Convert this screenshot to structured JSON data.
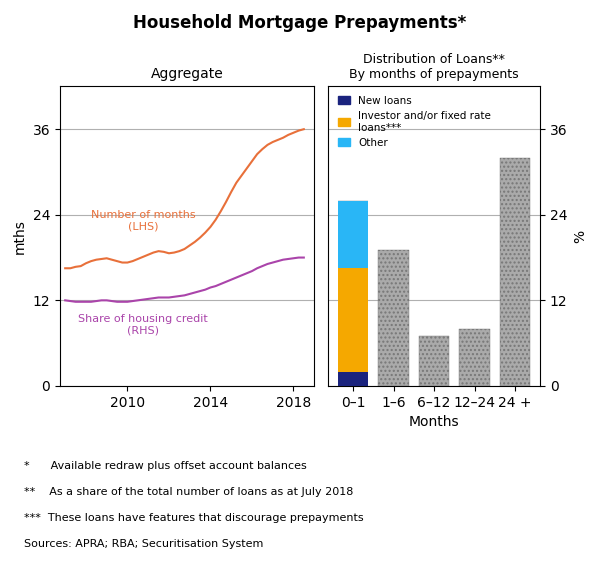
{
  "title": "Household Mortgage Prepayments*",
  "notes": [
    "*      Available redraw plus offset account balances",
    "**    As a share of the total number of loans as at July 2018",
    "***  These loans have features that discourage prepayments",
    "Sources: APRA; RBA; Securitisation System"
  ],
  "chart_data": [
    {
      "type": "line",
      "title": "Aggregate",
      "ylabel": "mths",
      "x": [
        2007.0,
        2007.25,
        2007.5,
        2007.75,
        2008.0,
        2008.25,
        2008.5,
        2008.75,
        2009.0,
        2009.25,
        2009.5,
        2009.75,
        2010.0,
        2010.25,
        2010.5,
        2010.75,
        2011.0,
        2011.25,
        2011.5,
        2011.75,
        2012.0,
        2012.25,
        2012.5,
        2012.75,
        2013.0,
        2013.25,
        2013.5,
        2013.75,
        2014.0,
        2014.25,
        2014.5,
        2014.75,
        2015.0,
        2015.25,
        2015.5,
        2015.75,
        2016.0,
        2016.25,
        2016.5,
        2016.75,
        2017.0,
        2017.25,
        2017.5,
        2017.75,
        2018.0,
        2018.25,
        2018.5
      ],
      "xlim": [
        2006.75,
        2019.0
      ],
      "xticks": [
        2010,
        2014,
        2018
      ],
      "ylim": [
        0,
        42
      ],
      "yticks": [
        0,
        12,
        24,
        36
      ],
      "grid": true,
      "series": [
        {
          "name": "Number of months\n(LHS)",
          "color": "#E8703A",
          "values": [
            16.5,
            16.5,
            16.7,
            16.8,
            17.2,
            17.5,
            17.7,
            17.8,
            17.9,
            17.7,
            17.5,
            17.3,
            17.3,
            17.5,
            17.8,
            18.1,
            18.4,
            18.7,
            18.9,
            18.8,
            18.6,
            18.7,
            18.9,
            19.2,
            19.7,
            20.2,
            20.8,
            21.5,
            22.3,
            23.3,
            24.5,
            25.8,
            27.2,
            28.5,
            29.5,
            30.5,
            31.5,
            32.5,
            33.2,
            33.8,
            34.2,
            34.5,
            34.8,
            35.2,
            35.5,
            35.8,
            36.0
          ]
        },
        {
          "name": "Share of housing credit\n(RHS)",
          "color": "#AA44AA",
          "values": [
            12.0,
            11.9,
            11.8,
            11.8,
            11.8,
            11.8,
            11.9,
            12.0,
            12.0,
            11.9,
            11.8,
            11.8,
            11.8,
            11.9,
            12.0,
            12.1,
            12.2,
            12.3,
            12.4,
            12.4,
            12.4,
            12.5,
            12.6,
            12.7,
            12.9,
            13.1,
            13.3,
            13.5,
            13.8,
            14.0,
            14.3,
            14.6,
            14.9,
            15.2,
            15.5,
            15.8,
            16.1,
            16.5,
            16.8,
            17.1,
            17.3,
            17.5,
            17.7,
            17.8,
            17.9,
            18.0,
            18.0
          ]
        }
      ]
    },
    {
      "type": "bar",
      "stacked": true,
      "title": "Distribution of Loans**\nBy months of prepayments",
      "xlabel": "Months",
      "ylabel": "%",
      "categories": [
        "0–1",
        "1–6",
        "6–12",
        "12–24",
        "24 +"
      ],
      "ylim": [
        0,
        42
      ],
      "yticks": [
        0,
        12,
        24,
        36
      ],
      "grid": true,
      "legend": "upper left",
      "series": [
        {
          "name": "New loans",
          "color": "#1A237E",
          "values": [
            2.0,
            0,
            0,
            0,
            0
          ]
        },
        {
          "name": "Investor and/or fixed rate\nloans***",
          "color": "#F5A800",
          "values": [
            14.5,
            0,
            0,
            0,
            0
          ]
        },
        {
          "name": "Other",
          "color": "#29B6F6",
          "values": [
            9.5,
            0,
            0,
            0,
            0
          ]
        },
        {
          "color": "#AAAAAA",
          "values": [
            0,
            19.0,
            7.0,
            8.0,
            32.0
          ]
        }
      ]
    }
  ]
}
